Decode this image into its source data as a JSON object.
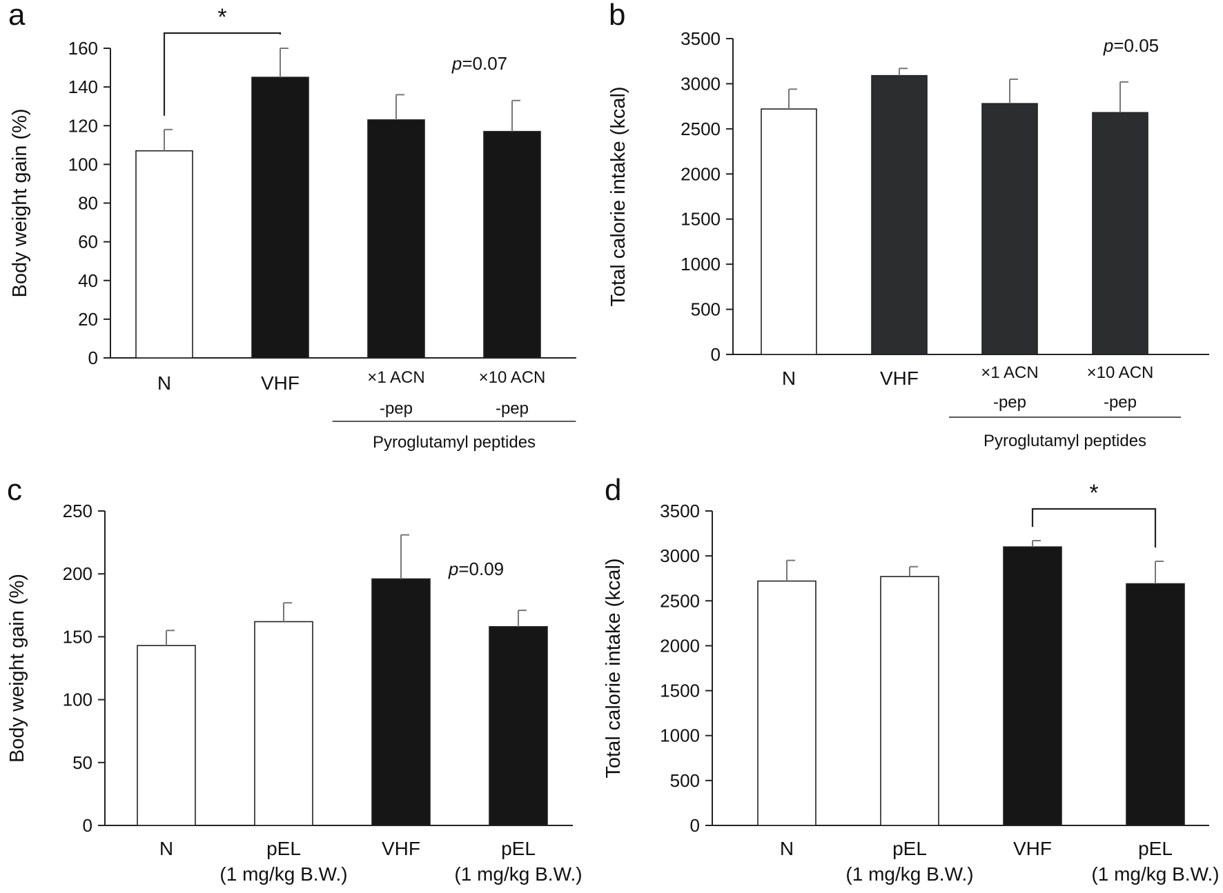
{
  "chart_data": [
    {
      "panel": "a",
      "type": "bar",
      "ylabel": "Body weight gain (%)",
      "ylim": [
        0,
        160
      ],
      "yticks": [
        0,
        20,
        40,
        60,
        80,
        100,
        120,
        140,
        160
      ],
      "categories": [
        "N",
        "VHF",
        "×1 ACN\n-pep",
        "×10 ACN\n-pep"
      ],
      "values": [
        107,
        145,
        123,
        117
      ],
      "errors": [
        11,
        15,
        13,
        16
      ],
      "bar_colors": [
        "#ffffff",
        "#161616",
        "#161616",
        "#161616"
      ],
      "group_bracket": {
        "label": "Pyroglutamyl  peptides",
        "from": 2,
        "to": 3
      },
      "p_value": {
        "prefix": "p",
        "text": "=0.07"
      },
      "significance": {
        "label": "*",
        "from": 0,
        "to": 1
      }
    },
    {
      "panel": "b",
      "type": "bar",
      "ylabel": "Total calorie intake (kcal)",
      "ylim": [
        0,
        3500
      ],
      "yticks": [
        0,
        500,
        1000,
        1500,
        2000,
        2500,
        3000,
        3500
      ],
      "categories": [
        "N",
        "VHF",
        "×1 ACN\n-pep",
        "×10 ACN\n-pep"
      ],
      "values": [
        2720,
        3090,
        2780,
        2680
      ],
      "errors": [
        220,
        80,
        270,
        340
      ],
      "bar_colors": [
        "#ffffff",
        "#2b2d2f",
        "#2b2d2f",
        "#2b2d2f"
      ],
      "group_bracket": {
        "label": "Pyroglutamyl  peptides",
        "from": 2,
        "to": 3
      },
      "p_value": {
        "prefix": "p",
        "text": "=0.05"
      }
    },
    {
      "panel": "c",
      "type": "bar",
      "ylabel": "Body weight gain (%)",
      "ylim": [
        0,
        250
      ],
      "yticks": [
        0,
        50,
        100,
        150,
        200,
        250
      ],
      "categories": [
        "N",
        "pEL\n(1 mg/kg B.W.)",
        "VHF",
        "pEL\n(1 mg/kg B.W.)"
      ],
      "values": [
        143,
        162,
        196,
        158
      ],
      "errors": [
        12,
        15,
        35,
        13
      ],
      "bar_colors": [
        "#ffffff",
        "#ffffff",
        "#161616",
        "#161616"
      ],
      "p_value": {
        "prefix": "p",
        "text": "=0.09"
      }
    },
    {
      "panel": "d",
      "type": "bar",
      "ylabel": "Total calorie intake (kcal)",
      "ylim": [
        0,
        3500
      ],
      "yticks": [
        0,
        500,
        1000,
        1500,
        2000,
        2500,
        3000,
        3500
      ],
      "categories": [
        "N",
        "pEL\n(1 mg/kg B.W.)",
        "VHF",
        "pEL\n(1 mg/kg B.W.)"
      ],
      "values": [
        2720,
        2770,
        3100,
        2690
      ],
      "errors": [
        230,
        110,
        70,
        250
      ],
      "bar_colors": [
        "#ffffff",
        "#ffffff",
        "#161616",
        "#161616"
      ],
      "significance": {
        "label": "*",
        "from": 2,
        "to": 3
      }
    }
  ]
}
